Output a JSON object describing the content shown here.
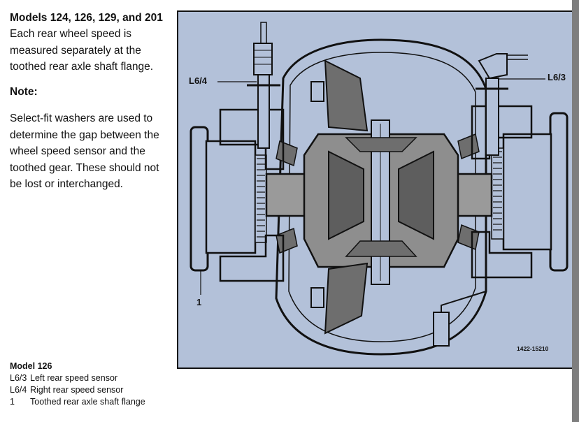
{
  "intro": {
    "heading": "Models 124, 126, 129, and 201",
    "body": "Each rear wheel speed is measured separately at the toothed rear axle shaft flange."
  },
  "note": {
    "title": "Note:",
    "body": "Select-fit washers are used to determine the gap between the wheel speed sensor and the toothed gear. These should not be lost or interchanged."
  },
  "legend": {
    "title": "Model 126",
    "items": [
      {
        "code": "L6/3",
        "desc": "Left rear speed sensor"
      },
      {
        "code": "L6/4",
        "desc": "Right rear speed sensor"
      },
      {
        "code": "1",
        "desc": "Toothed rear axle shaft flange"
      }
    ]
  },
  "figure": {
    "callouts": {
      "left_sensor": "L6/4",
      "right_sensor": "L6/3",
      "flange": "1"
    },
    "figure_number": "1422-15210",
    "background_color": "#b3c1d9",
    "line_color": "#111111",
    "part_color": "#6e6e6e"
  }
}
